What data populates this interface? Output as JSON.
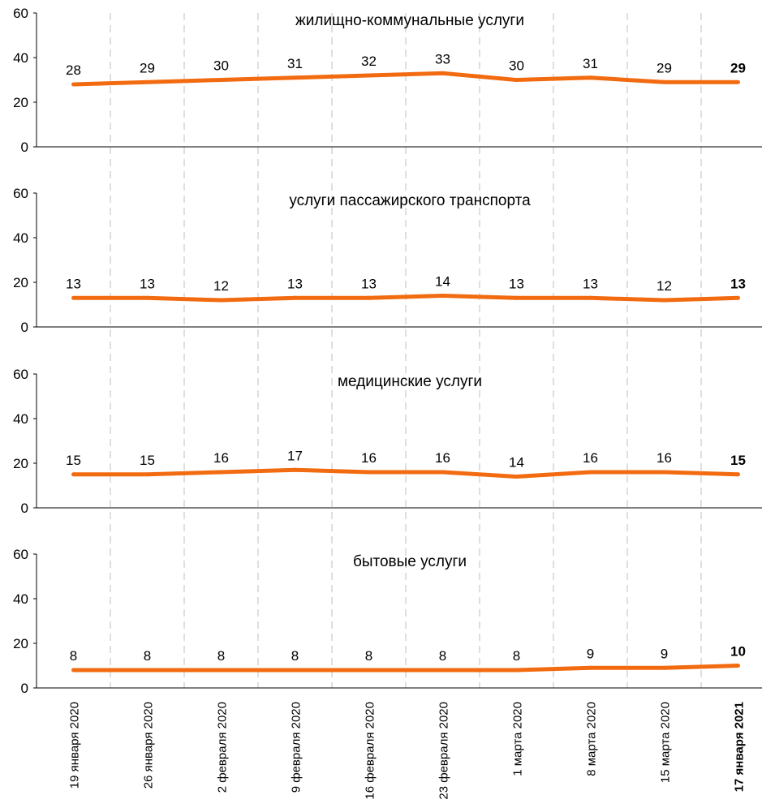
{
  "chart_data": [
    {
      "type": "line",
      "title": "жилищно-коммунальные услуги",
      "categories": [
        "19 января 2020",
        "26 января 2020",
        "2 февраля 2020",
        "9 февраля 2020",
        "16 февраля 2020",
        "23 февраля 2020",
        "1 марта 2020",
        "8 марта 2020",
        "15 марта 2020",
        "17 января 2021"
      ],
      "series": [
        {
          "values": [
            28,
            29,
            30,
            31,
            32,
            33,
            30,
            31,
            29,
            29
          ],
          "color": "#f26b10"
        }
      ],
      "ylim": [
        0,
        60
      ],
      "yticks": [
        "0",
        "20",
        "40",
        "60"
      ],
      "last_point_bold": true
    },
    {
      "type": "line",
      "title": "услуги пассажирского транспорта",
      "categories": [
        "19 января 2020",
        "26 января 2020",
        "2 февраля 2020",
        "9 февраля 2020",
        "16 февраля 2020",
        "23 февраля 2020",
        "1 марта 2020",
        "8 марта 2020",
        "15 марта 2020",
        "17 января 2021"
      ],
      "series": [
        {
          "values": [
            13,
            13,
            12,
            13,
            13,
            14,
            13,
            13,
            12,
            13
          ],
          "color": "#f26b10"
        }
      ],
      "ylim": [
        0,
        60
      ],
      "yticks": [
        "0",
        "20",
        "40",
        "60"
      ],
      "last_point_bold": true
    },
    {
      "type": "line",
      "title": "медицинские услуги",
      "categories": [
        "19 января 2020",
        "26 января 2020",
        "2 февраля 2020",
        "9 февраля 2020",
        "16 февраля 2020",
        "23 февраля 2020",
        "1 марта 2020",
        "8 марта 2020",
        "15 марта 2020",
        "17 января 2021"
      ],
      "series": [
        {
          "values": [
            15,
            15,
            16,
            17,
            16,
            16,
            14,
            16,
            16,
            15
          ],
          "color": "#f26b10"
        }
      ],
      "ylim": [
        0,
        60
      ],
      "yticks": [
        "0",
        "20",
        "40",
        "60"
      ],
      "last_point_bold": true
    },
    {
      "type": "line",
      "title": "бытовые услуги",
      "categories": [
        "19 января 2020",
        "26 января 2020",
        "2 февраля 2020",
        "9 февраля 2020",
        "16 февраля 2020",
        "23 февраля 2020",
        "1 марта 2020",
        "8 марта 2020",
        "15 марта 2020",
        "17 января 2021"
      ],
      "series": [
        {
          "values": [
            8,
            8,
            8,
            8,
            8,
            8,
            8,
            9,
            9,
            10
          ],
          "color": "#f26b10"
        }
      ],
      "ylim": [
        0,
        60
      ],
      "yticks": [
        "0",
        "20",
        "40",
        "60"
      ],
      "last_point_bold": true
    }
  ],
  "x_axis": {
    "labels": [
      "19 января 2020",
      "26 января 2020",
      "2 февраля 2020",
      "9 февраля 2020",
      "16 февраля 2020",
      "23 февраля 2020",
      "1 марта 2020",
      "8 марта 2020",
      "15 марта 2020",
      "17 января 2021"
    ],
    "last_label_bold": true
  },
  "style": {
    "axis_color": "#000000",
    "grid_color": "#bfbfbf",
    "text_color": "#000000"
  }
}
